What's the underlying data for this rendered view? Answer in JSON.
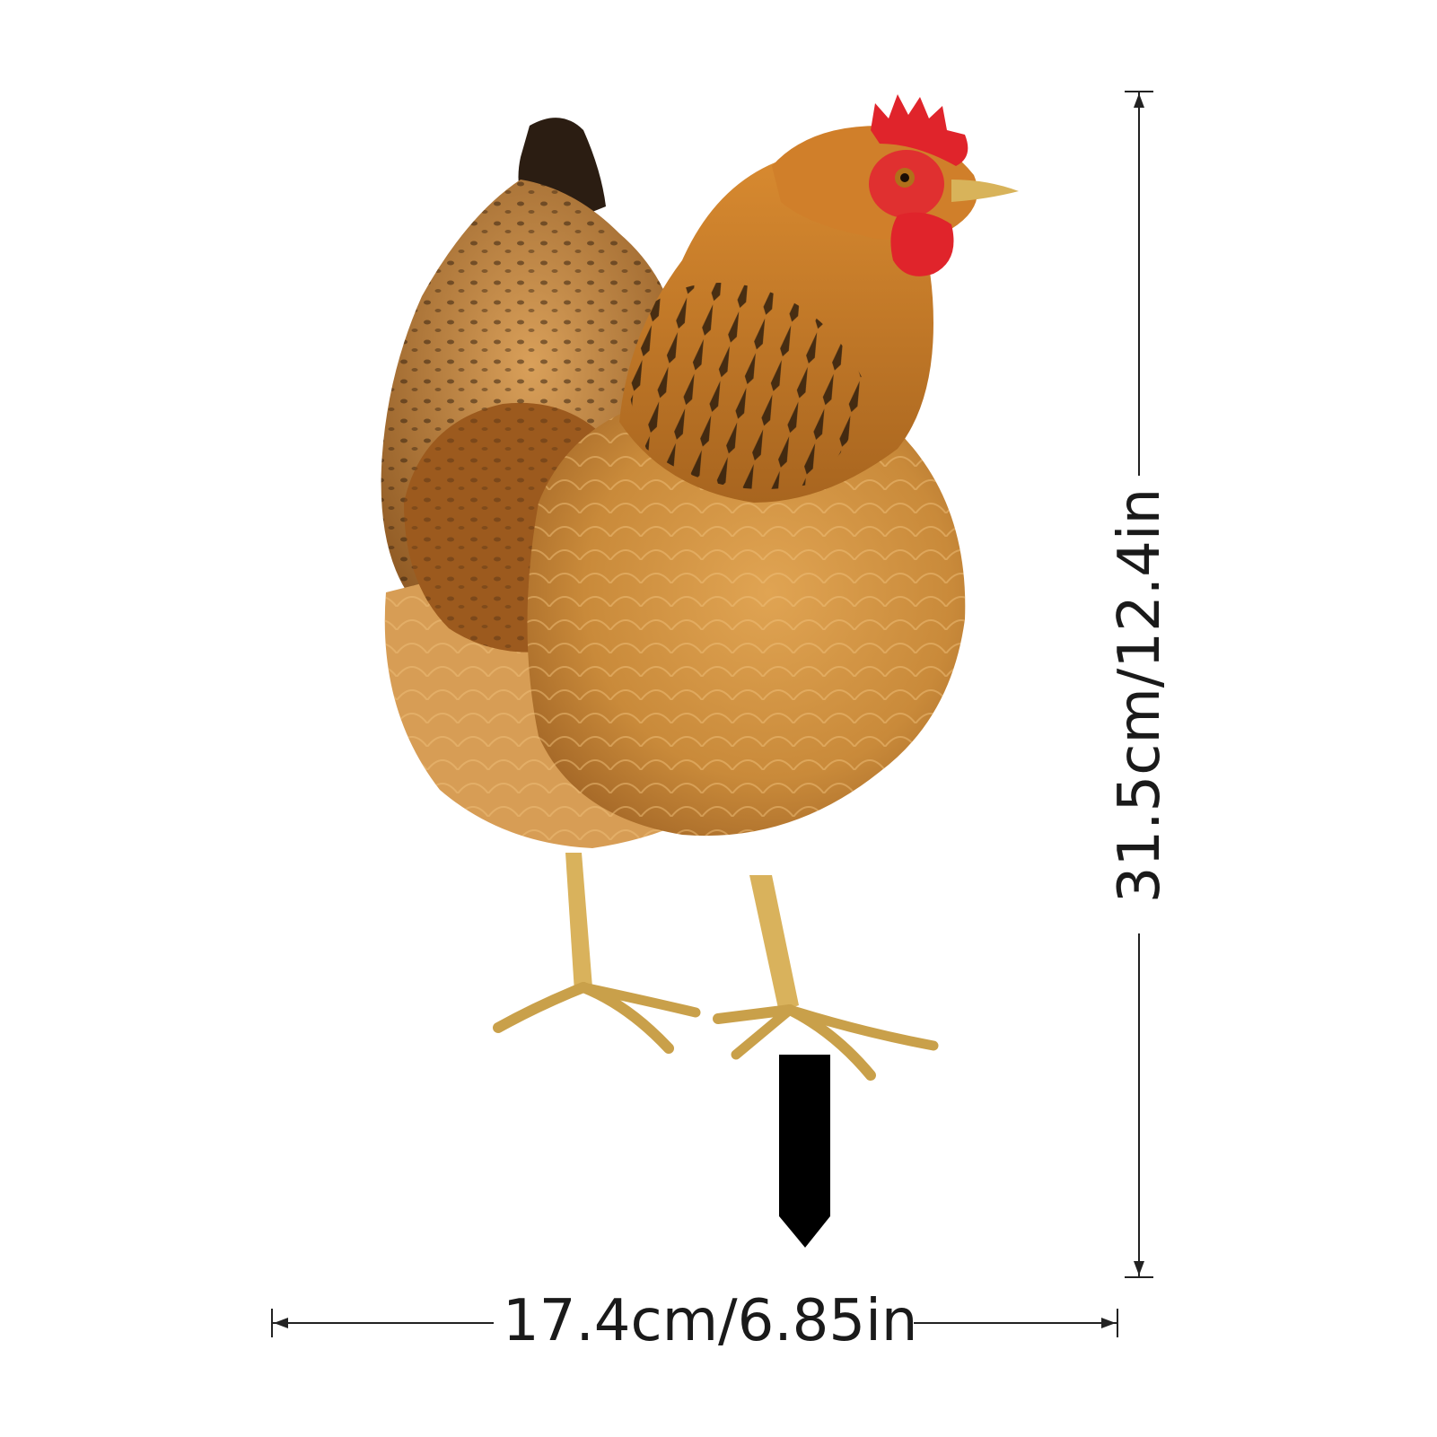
{
  "dimensions": {
    "width_label": "17.4cm/6.85in",
    "height_label": "31.5cm/12.4in"
  },
  "colors": {
    "background": "#ffffff",
    "feather_main": "#c98a3a",
    "feather_dark": "#8a4f1c",
    "comb": "#e0242b",
    "legs": "#d9b25c",
    "stake": "#000000",
    "dimension_line": "#222222"
  }
}
